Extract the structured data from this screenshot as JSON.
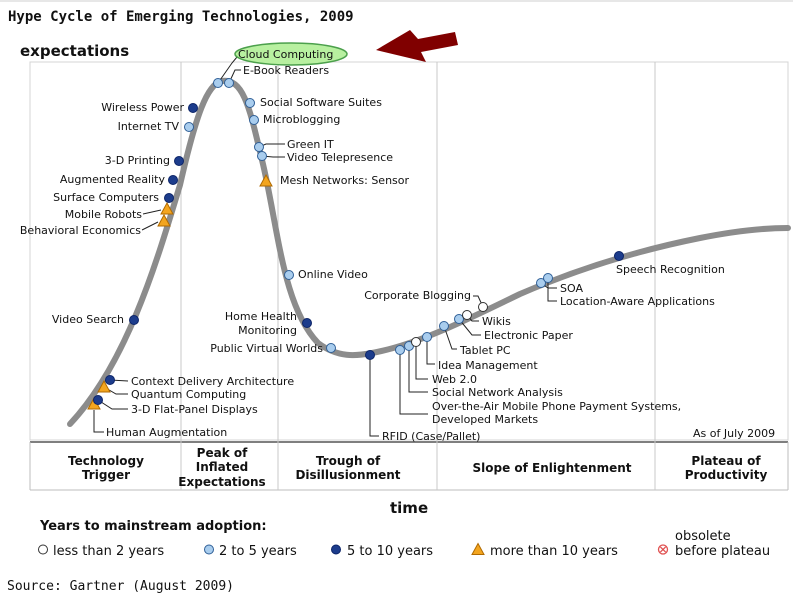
{
  "chart_data": {
    "type": "hype-cycle",
    "title": "Hype Cycle of Emerging Technologies, 2009",
    "ylabel": "expectations",
    "xlabel": "time",
    "as_of": "As of July 2009",
    "source": "Source: Gartner (August 2009)",
    "highlight": "Cloud Computing",
    "phases": [
      "Technology Trigger",
      "Peak of Inflated Expectations",
      "Trough of Disillusionment",
      "Slope of Enlightenment",
      "Plateau of Productivity"
    ],
    "legend_title": "Years to mainstream adoption:",
    "legend": [
      {
        "key": "lt2",
        "label": "less than 2 years"
      },
      {
        "key": "y2to5",
        "label": "2 to 5 years"
      },
      {
        "key": "y5to10",
        "label": "5 to 10 years"
      },
      {
        "key": "gt10",
        "label": "more than 10 years"
      },
      {
        "key": "obsolete",
        "label": "obsolete before plateau"
      }
    ],
    "technologies": [
      {
        "name": "Human Augmentation",
        "phase": "Technology Trigger",
        "adoption": "gt10"
      },
      {
        "name": "3-D Flat-Panel Displays",
        "phase": "Technology Trigger",
        "adoption": "y5to10"
      },
      {
        "name": "Quantum Computing",
        "phase": "Technology Trigger",
        "adoption": "gt10"
      },
      {
        "name": "Context Delivery Architecture",
        "phase": "Technology Trigger",
        "adoption": "y5to10"
      },
      {
        "name": "Video Search",
        "phase": "Technology Trigger",
        "adoption": "y5to10"
      },
      {
        "name": "Behavioral Economics",
        "phase": "Technology Trigger",
        "adoption": "gt10"
      },
      {
        "name": "Mobile Robots",
        "phase": "Technology Trigger",
        "adoption": "gt10"
      },
      {
        "name": "Surface Computers",
        "phase": "Technology Trigger",
        "adoption": "y5to10"
      },
      {
        "name": "Augmented Reality",
        "phase": "Technology Trigger",
        "adoption": "y5to10"
      },
      {
        "name": "3-D Printing",
        "phase": "Technology Trigger",
        "adoption": "y5to10"
      },
      {
        "name": "Internet TV",
        "phase": "Technology Trigger",
        "adoption": "y2to5"
      },
      {
        "name": "Wireless Power",
        "phase": "Technology Trigger",
        "adoption": "y5to10"
      },
      {
        "name": "Cloud Computing",
        "phase": "Peak of Inflated Expectations",
        "adoption": "y2to5"
      },
      {
        "name": "E-Book Readers",
        "phase": "Peak of Inflated Expectations",
        "adoption": "y2to5"
      },
      {
        "name": "Social Software Suites",
        "phase": "Peak of Inflated Expectations",
        "adoption": "y2to5"
      },
      {
        "name": "Microblogging",
        "phase": "Peak of Inflated Expectations",
        "adoption": "y2to5"
      },
      {
        "name": "Green IT",
        "phase": "Peak of Inflated Expectations",
        "adoption": "y2to5"
      },
      {
        "name": "Video Telepresence",
        "phase": "Peak of Inflated Expectations",
        "adoption": "y2to5"
      },
      {
        "name": "Mesh Networks: Sensor",
        "phase": "Peak of Inflated Expectations",
        "adoption": "gt10"
      },
      {
        "name": "Online Video",
        "phase": "Trough of Disillusionment",
        "adoption": "y2to5"
      },
      {
        "name": "Home Health Monitoring",
        "phase": "Trough of Disillusionment",
        "adoption": "y5to10"
      },
      {
        "name": "Public Virtual Worlds",
        "phase": "Trough of Disillusionment",
        "adoption": "y2to5"
      },
      {
        "name": "RFID (Case/Pallet)",
        "phase": "Trough of Disillusionment",
        "adoption": "y5to10"
      },
      {
        "name": "Over-the-Air Mobile Phone Payment Systems, Developed Markets",
        "phase": "Trough of Disillusionment",
        "adoption": "y2to5"
      },
      {
        "name": "Social Network Analysis",
        "phase": "Trough of Disillusionment",
        "adoption": "y2to5"
      },
      {
        "name": "Web 2.0",
        "phase": "Trough of Disillusionment",
        "adoption": "lt2"
      },
      {
        "name": "Idea Management",
        "phase": "Slope of Enlightenment",
        "adoption": "y2to5"
      },
      {
        "name": "Tablet PC",
        "phase": "Slope of Enlightenment",
        "adoption": "y2to5"
      },
      {
        "name": "Electronic Paper",
        "phase": "Slope of Enlightenment",
        "adoption": "y2to5"
      },
      {
        "name": "Wikis",
        "phase": "Slope of Enlightenment",
        "adoption": "lt2"
      },
      {
        "name": "Corporate Blogging",
        "phase": "Slope of Enlightenment",
        "adoption": "lt2"
      },
      {
        "name": "SOA",
        "phase": "Slope of Enlightenment",
        "adoption": "y2to5"
      },
      {
        "name": "Location-Aware Applications",
        "phase": "Slope of Enlightenment",
        "adoption": "y2to5"
      },
      {
        "name": "Speech Recognition",
        "phase": "Slope of Enlightenment",
        "adoption": "y5to10"
      }
    ]
  },
  "colors": {
    "lt2": "#ffffff",
    "y2to5": "#a9cdee",
    "y5to10": "#1c3c8c",
    "gt10": "#f3a51f",
    "obsolete": "#e05050",
    "curve": "#8c8c8c",
    "grid": "#c8c8c8",
    "highlight_fill": "#b8f0a0",
    "highlight_stroke": "#4ca04c",
    "arrow": "#800000"
  }
}
